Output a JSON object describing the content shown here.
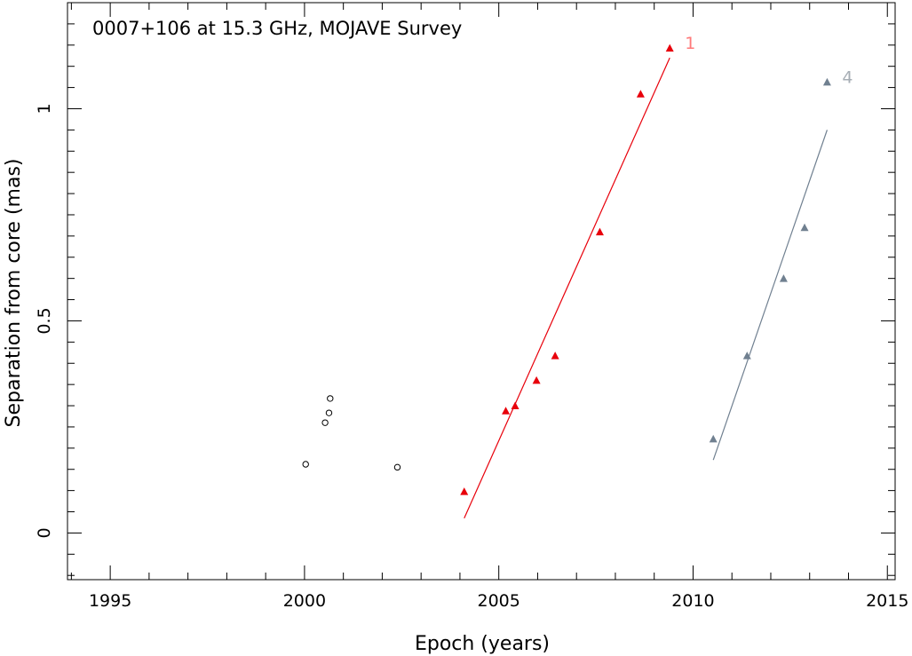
{
  "chart_data": {
    "type": "scatter",
    "title": "0007+106 at 15.3 GHz, MOJAVE Survey",
    "xlabel": "Epoch (years)",
    "ylabel": "Separation from core (mas)",
    "xlim": [
      1993.9,
      2015.2
    ],
    "ylim": [
      -0.11,
      1.25
    ],
    "x_ticks": [
      1995,
      2000,
      2005,
      2010,
      2015
    ],
    "y_ticks": [
      0,
      0.5,
      1
    ],
    "y_tick_labels": [
      "0",
      "0.5",
      "1"
    ],
    "grid": false,
    "unlabeled_points": {
      "marker": "open-circle",
      "color": "#000000",
      "x": [
        2000.03,
        2000.53,
        2000.63,
        2000.66,
        2002.39
      ],
      "y": [
        0.162,
        0.26,
        0.283,
        0.317,
        0.155
      ]
    },
    "series": [
      {
        "name": "1",
        "color": "#e8000b",
        "label_color": "#ff7a7a",
        "marker": "filled-triangle",
        "x": [
          2004.11,
          2005.18,
          2005.42,
          2005.97,
          2006.45,
          2007.6,
          2008.65,
          2009.4
        ],
        "y": [
          0.098,
          0.288,
          0.3,
          0.36,
          0.418,
          0.71,
          1.035,
          1.143
        ],
        "fit": {
          "x": [
            2004.11,
            2009.4
          ],
          "y": [
            0.035,
            1.12
          ]
        }
      },
      {
        "name": "4",
        "color": "#708090",
        "label_color": "#a7aeb5",
        "marker": "filled-triangle",
        "x": [
          2010.52,
          2011.39,
          2012.33,
          2012.87,
          2013.45
        ],
        "y": [
          0.222,
          0.418,
          0.6,
          0.72,
          1.063
        ],
        "fit": {
          "x": [
            2010.52,
            2013.45
          ],
          "y": [
            0.172,
            0.95
          ]
        }
      }
    ]
  }
}
